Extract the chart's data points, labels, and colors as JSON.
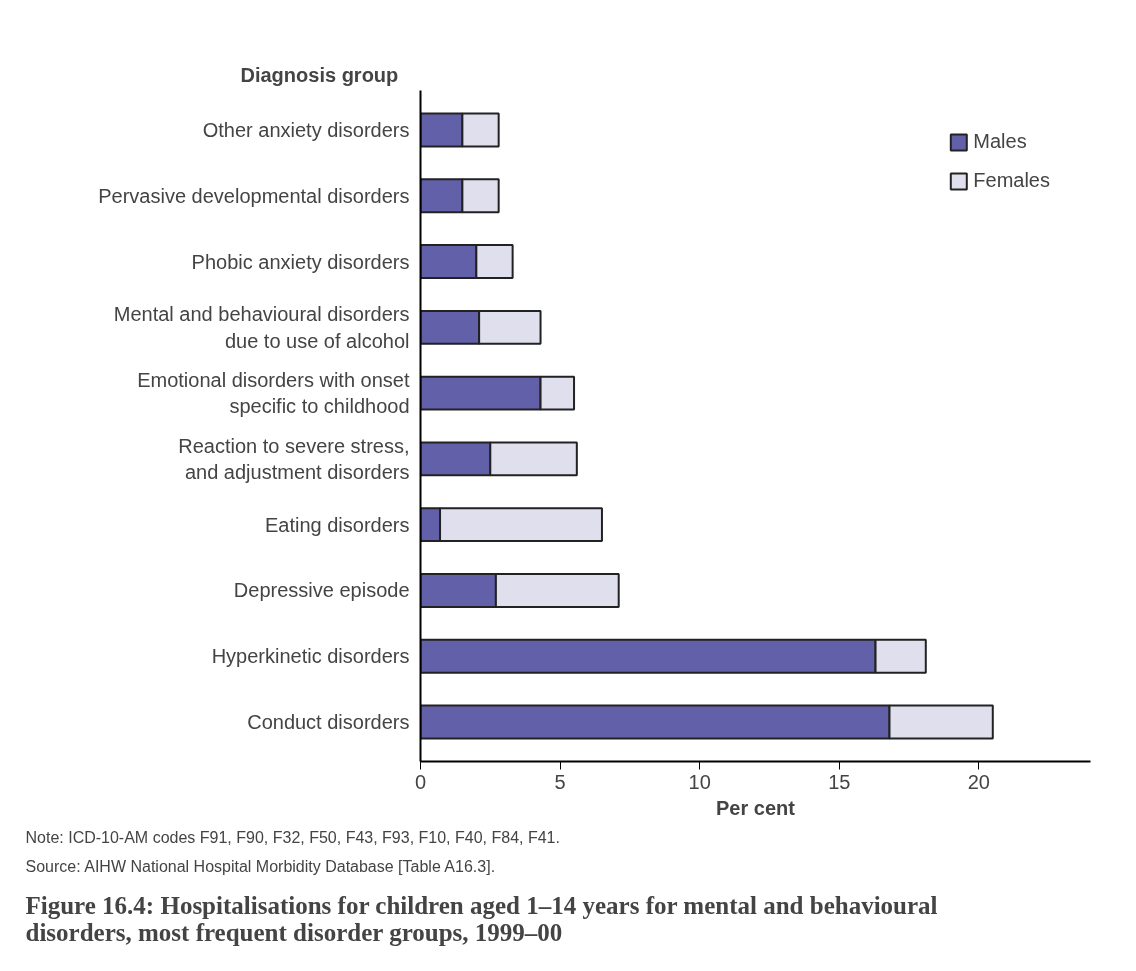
{
  "chart_data": {
    "type": "bar",
    "orientation": "horizontal",
    "stacked": true,
    "title": "Figure 16.4: Hospitalisations for children aged 1–14 years for mental and behavioural\ndisorders, most frequent disorder groups, 1999–00",
    "xlabel": "Per cent",
    "ylabel": "Diagnosis group",
    "categories": [
      "Other anxiety disorders",
      "Pervasive developmental disorders",
      "Phobic anxiety disorders",
      "Mental and behavioural disorders\ndue to use of alcohol",
      "Emotional disorders with onset\nspecific to childhood",
      "Reaction to severe stress,\nand adjustment disorders",
      "Eating disorders",
      "Depressive episode",
      "Hyperkinetic disorders",
      "Conduct disorders"
    ],
    "series": [
      {
        "name": "Males",
        "color": "#6260a8",
        "values": [
          1.5,
          1.5,
          2.0,
          2.1,
          4.3,
          2.5,
          0.7,
          2.7,
          16.3,
          16.8
        ]
      },
      {
        "name": "Females",
        "color": "#dfdfee",
        "values": [
          1.3,
          1.3,
          1.3,
          2.2,
          1.2,
          3.1,
          5.8,
          4.4,
          1.8,
          3.7
        ]
      }
    ],
    "xlim": [
      0,
      24
    ],
    "xticks": [
      0,
      5,
      10,
      15,
      20
    ],
    "grid": false,
    "legend": "top right",
    "annotations": [
      "Note: ICD-10-AM codes F91, F90, F32, F50, F43, F93, F10, F40, F84, F41.",
      "Source: AIHW National Hospital Morbidity Database [Table A16.3]."
    ]
  }
}
